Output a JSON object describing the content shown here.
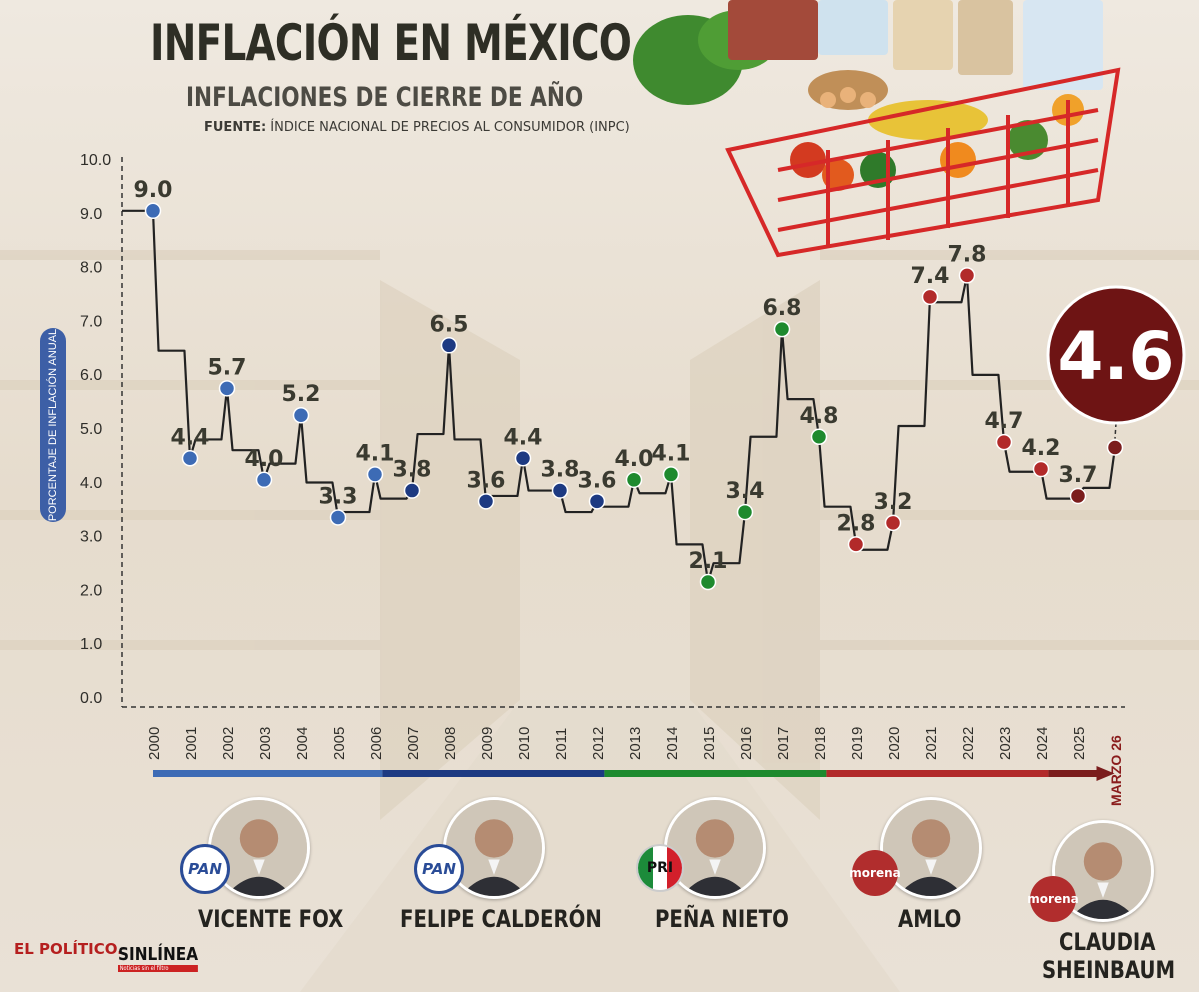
{
  "header": {
    "title": "INFLACIÓN EN MÉXICO",
    "subtitle": "INFLACIONES DE CIERRE DE AÑO",
    "source_prefix": "FUENTE:",
    "source_text": " ÍNDICE NACIONAL DE PRECIOS AL CONSUMIDOR (INPC)"
  },
  "chart_data": {
    "type": "line",
    "ylabel": "PORCENTAJE DE INFLACIÓN ANUAL",
    "ylim": [
      0,
      10
    ],
    "yticks": [
      "0.0",
      "1.0",
      "2.0",
      "3.0",
      "4.0",
      "5.0",
      "6.0",
      "7.0",
      "8.0",
      "9.0",
      "10.0"
    ],
    "categories": [
      "2000",
      "2001",
      "2002",
      "2003",
      "2004",
      "2005",
      "2006",
      "2007",
      "2008",
      "2009",
      "2010",
      "2011",
      "2012",
      "2013",
      "2014",
      "2015",
      "2016",
      "2017",
      "2018",
      "2019",
      "2020",
      "2021",
      "2022",
      "2023",
      "2024",
      "2025",
      "MARZO 26"
    ],
    "values": [
      9.0,
      4.4,
      5.7,
      4.0,
      5.2,
      3.3,
      4.1,
      3.8,
      6.5,
      3.6,
      4.4,
      3.8,
      3.6,
      4.0,
      4.1,
      2.1,
      3.4,
      6.8,
      4.8,
      2.8,
      3.2,
      7.4,
      7.8,
      4.7,
      4.2,
      3.7,
      4.6
    ],
    "labels": [
      "9.0",
      "4.4",
      "5.7",
      "4.0",
      "5.2",
      "3.3",
      "4.1",
      "3.8",
      "6.5",
      "3.6",
      "4.4",
      "3.8",
      "3.6",
      "4.0",
      "4.1",
      "2.1",
      "3.4",
      "6.8",
      "4.8",
      "2.8",
      "3.2",
      "7.4",
      "7.8",
      "4.7",
      "4.2",
      "3.7",
      "4.6"
    ],
    "party_colors": {
      "fox": "#3d6bb5",
      "calderon": "#1d3a82",
      "pena": "#1e8a2e",
      "amlo": "#b22a2a",
      "sheinbaum": "#7b1d1d"
    },
    "point_groups": [
      "fox",
      "fox",
      "fox",
      "fox",
      "fox",
      "fox",
      "fox",
      "calderon",
      "calderon",
      "calderon",
      "calderon",
      "calderon",
      "calderon",
      "pena",
      "pena",
      "pena",
      "pena",
      "pena",
      "pena",
      "amlo",
      "amlo",
      "amlo",
      "amlo",
      "amlo",
      "amlo",
      "sheinbaum",
      "sheinbaum"
    ],
    "highlight_value": "4.6"
  },
  "leaders": [
    {
      "name": "VICENTE FOX",
      "party": "PAN"
    },
    {
      "name": "FELIPE CALDERÓN",
      "party": "PAN"
    },
    {
      "name": "PEÑA NIETO",
      "party": "PRI"
    },
    {
      "name": "AMLO",
      "party": "morena"
    },
    {
      "name": "CLAUDIA",
      "name2": "SHEINBAUM",
      "party": "morena"
    }
  ],
  "logos": {
    "logo1": "EL POLÍTICO.",
    "logo2": "SINLÍNEA",
    "logo2_tag": "Noticias sin el filtro"
  }
}
